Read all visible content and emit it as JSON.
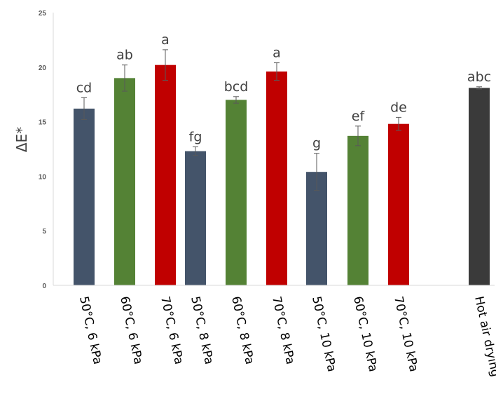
{
  "chart_data": {
    "type": "bar",
    "title": "",
    "xlabel": "",
    "ylabel": "ΔE*",
    "ylim": [
      0,
      25
    ],
    "yticks": [
      0,
      5,
      10,
      15,
      20,
      25
    ],
    "grid": false,
    "categories": [
      "50°C, 6 kPa",
      "60°C, 6 kPa",
      "70°C, 6 kPa",
      "50°C, 8 kPa",
      "60°C, 8 kPa",
      "70°C, 8 kPa",
      "50°C, 10 kPa",
      "60°C, 10 kPa",
      "70°C, 10 kPa",
      "Hot air drying"
    ],
    "values": [
      16.2,
      19.0,
      20.2,
      12.3,
      17.0,
      19.6,
      10.4,
      13.7,
      14.8,
      18.1
    ],
    "errors": [
      1.0,
      1.2,
      1.4,
      0.4,
      0.3,
      0.8,
      1.7,
      0.9,
      0.6,
      0.1
    ],
    "significance_letters": [
      "cd",
      "ab",
      "a",
      "fg",
      "bcd",
      "a",
      "g",
      "ef",
      "de",
      "abc"
    ],
    "bar_colors": [
      "#44546a",
      "#548235",
      "#c00000",
      "#44546a",
      "#548235",
      "#c00000",
      "#44546a",
      "#548235",
      "#c00000",
      "#3a3a3a"
    ]
  }
}
